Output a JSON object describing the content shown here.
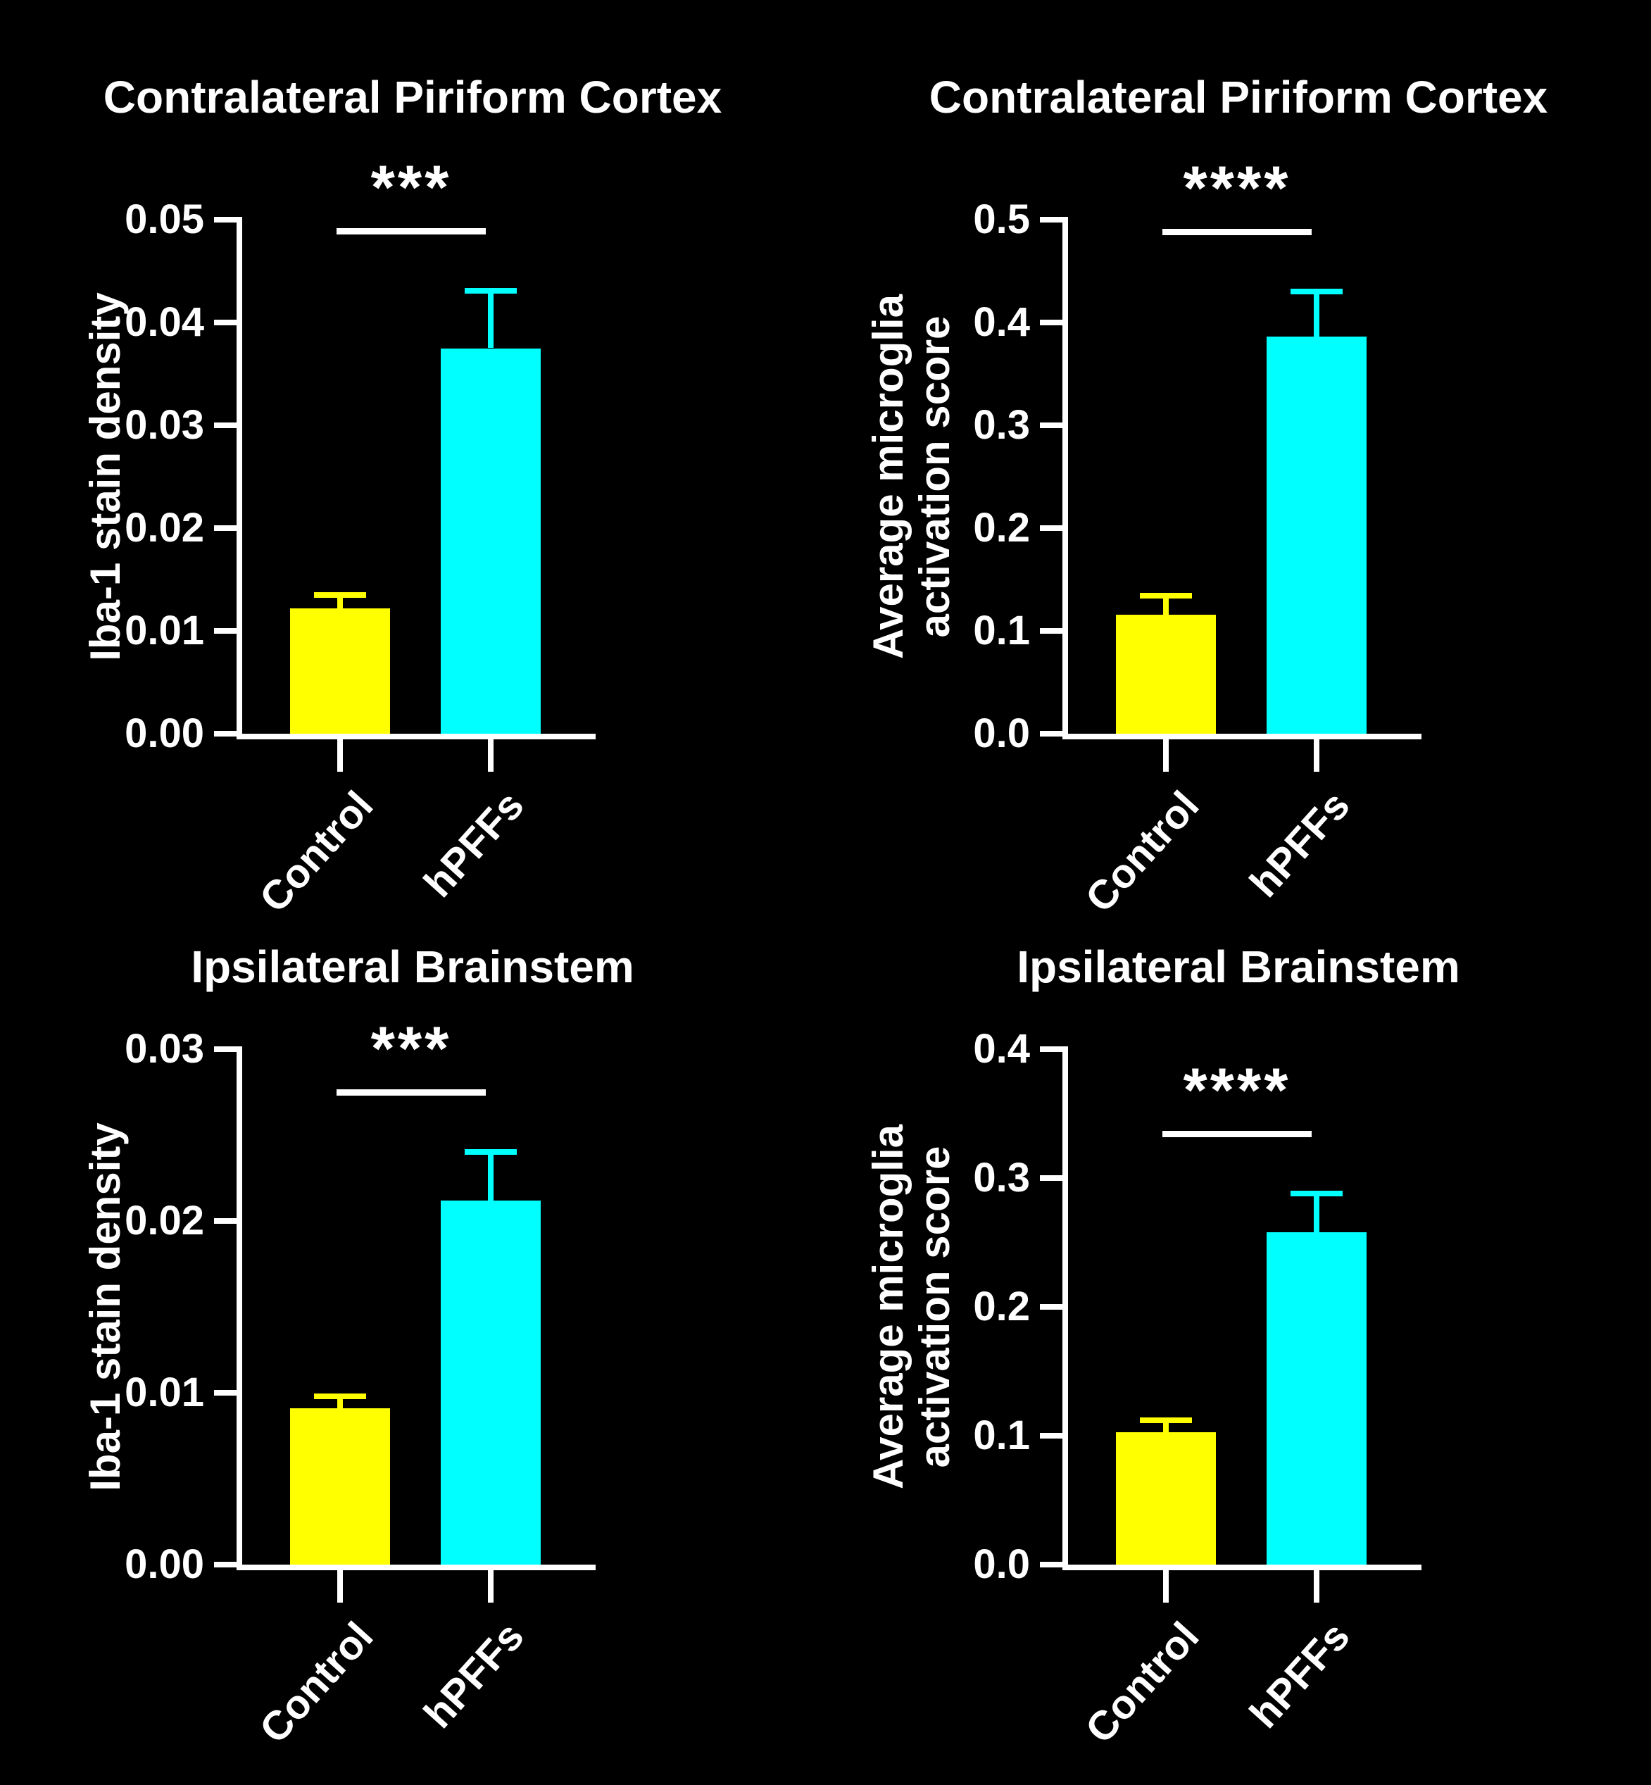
{
  "figure": {
    "background_color": "#000000",
    "text_color": "#ffffff",
    "control_color": "#FFFF00",
    "hpff_color": "#00FFFF"
  },
  "chart_data": [
    {
      "type": "bar",
      "title": "Contralateral Piriform Cortex",
      "ylabel": "Iba-1 stain density",
      "ylabel_lines": [
        "Iba-1 stain density"
      ],
      "xlabel": "",
      "ylim": [
        0,
        0.05
      ],
      "ytick_labels": [
        "0.00",
        "0.01",
        "0.02",
        "0.03",
        "0.04",
        "0.05"
      ],
      "categories": [
        "Control",
        "hPFFs"
      ],
      "values": [
        0.0122,
        0.0375
      ],
      "sem": [
        0.0013,
        0.0056
      ],
      "bar_colors": [
        "#FFFF00",
        "#00FFFF"
      ],
      "significance": "***",
      "grid": false,
      "legend": "none",
      "error_bars": "mean + SEM, upper only"
    },
    {
      "type": "bar",
      "title": "Contralateral Piriform Cortex",
      "ylabel": "Average microglia activation score",
      "ylabel_lines": [
        "Average microglia",
        "activation score"
      ],
      "xlabel": "",
      "ylim": [
        0,
        0.5
      ],
      "ytick_labels": [
        "0.0",
        "0.1",
        "0.2",
        "0.3",
        "0.4",
        "0.5"
      ],
      "categories": [
        "Control",
        "hPFFs"
      ],
      "values": [
        0.116,
        0.386
      ],
      "sem": [
        0.018,
        0.044
      ],
      "bar_colors": [
        "#FFFF00",
        "#00FFFF"
      ],
      "significance": "****",
      "grid": false,
      "legend": "none",
      "error_bars": "mean + SEM, upper only"
    },
    {
      "type": "bar",
      "title": "Ipsilateral Brainstem",
      "ylabel": "Iba-1 stain density",
      "ylabel_lines": [
        "Iba-1 stain density"
      ],
      "xlabel": "",
      "ylim": [
        0,
        0.03
      ],
      "ytick_labels": [
        "0.00",
        "0.01",
        "0.02",
        "0.03"
      ],
      "categories": [
        "Control",
        "hPFFs"
      ],
      "values": [
        0.0091,
        0.0212
      ],
      "sem": [
        0.0007,
        0.0028
      ],
      "bar_colors": [
        "#FFFF00",
        "#00FFFF"
      ],
      "significance": "***",
      "grid": false,
      "legend": "none",
      "error_bars": "mean + SEM, upper only"
    },
    {
      "type": "bar",
      "title": "Ipsilateral Brainstem",
      "ylabel": "Average microglia activation score",
      "ylabel_lines": [
        "Average microglia",
        "activation score"
      ],
      "xlabel": "",
      "ylim": [
        0,
        0.4
      ],
      "ytick_labels": [
        "0.0",
        "0.1",
        "0.2",
        "0.3",
        "0.4"
      ],
      "categories": [
        "Control",
        "hPFFs"
      ],
      "values": [
        0.103,
        0.258
      ],
      "sem": [
        0.009,
        0.03
      ],
      "bar_colors": [
        "#FFFF00",
        "#00FFFF"
      ],
      "significance": "****",
      "grid": false,
      "legend": "none",
      "error_bars": "mean + SEM, upper only"
    }
  ]
}
